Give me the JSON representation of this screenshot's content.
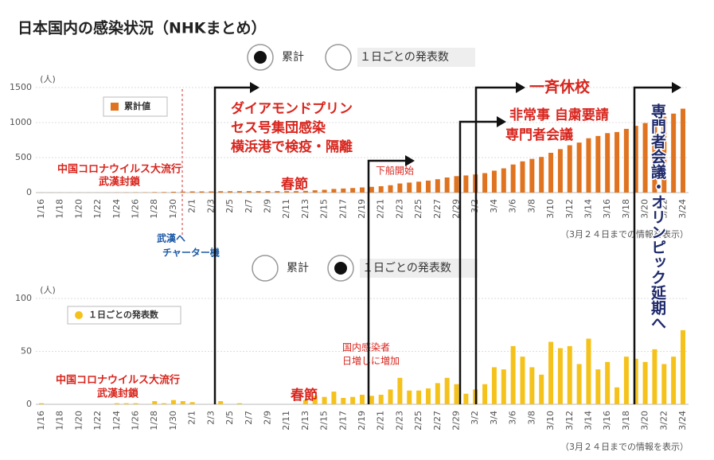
{
  "title": "日本国内の感染状況（NHKまとめ）",
  "overlay_text": "専門者会議・オリンピック延期へ",
  "chart_data": [
    {
      "type": "bar",
      "toggle": {
        "options": [
          "累計",
          "１日ごとの発表数"
        ],
        "selected": 0
      },
      "y_unit": "(人)",
      "categories": [
        "1/16",
        null,
        "1/18",
        null,
        "1/20",
        null,
        "1/22",
        null,
        "1/24",
        null,
        "1/26",
        null,
        "1/28",
        null,
        "1/30",
        null,
        "2/1",
        null,
        "2/3",
        null,
        "2/5",
        null,
        "2/7",
        null,
        "2/9",
        null,
        "2/11",
        null,
        "2/13",
        null,
        "2/15",
        null,
        "2/17",
        null,
        "2/19",
        null,
        "2/21",
        null,
        "2/23",
        null,
        "2/25",
        null,
        "2/27",
        null,
        "2/29",
        null,
        "3/2",
        null,
        "3/4",
        null,
        "3/6",
        null,
        "3/8",
        null,
        "3/10",
        null,
        "3/12",
        null,
        "3/14",
        null,
        "3/16",
        null,
        "3/18",
        null,
        "3/20",
        null,
        "3/22",
        null,
        "3/24"
      ],
      "series": [
        {
          "name": "累計値",
          "color": "#e0731f",
          "values": [
            1,
            1,
            1,
            1,
            1,
            1,
            1,
            1,
            2,
            3,
            4,
            4,
            7,
            8,
            12,
            15,
            17,
            17,
            17,
            20,
            20,
            21,
            21,
            21,
            21,
            21,
            21,
            21,
            25,
            33,
            40,
            52,
            58,
            65,
            74,
            82,
            91,
            105,
            130,
            143,
            156,
            171,
            191,
            216,
            235,
            245,
            259,
            278,
            313,
            346,
            401,
            446,
            481,
            509,
            568,
            621,
            676,
            714,
            776,
            809,
            849,
            865,
            910,
            953,
            993,
            1045,
            1083,
            1128,
            1198
          ]
        }
      ],
      "ylim": [
        0,
        1500
      ],
      "yticks": [
        0,
        500,
        1000,
        1500
      ],
      "grid": true,
      "note": "（3月２４日までの情報を表示）",
      "annotations": [
        "中国コロナウイルス大流行",
        "武漢封鎖",
        "春節",
        "ダイアモンドプリン",
        "セス号集団感染",
        "横浜港で検疫・隔離",
        "下船開始",
        "一斉休校",
        "非常事 自粛要請",
        "専門者会議",
        "武漢へ",
        "チャーター機"
      ]
    },
    {
      "type": "bar",
      "toggle": {
        "options": [
          "累計",
          "１日ごとの発表数"
        ],
        "selected": 1
      },
      "y_unit": "(人)",
      "categories": [
        "1/16",
        null,
        "1/18",
        null,
        "1/20",
        null,
        "1/22",
        null,
        "1/24",
        null,
        "1/26",
        null,
        "1/28",
        null,
        "1/30",
        null,
        "2/1",
        null,
        "2/3",
        null,
        "2/5",
        null,
        "2/7",
        null,
        "2/9",
        null,
        "2/11",
        null,
        "2/13",
        null,
        "2/15",
        null,
        "2/17",
        null,
        "2/19",
        null,
        "2/21",
        null,
        "2/23",
        null,
        "2/25",
        null,
        "2/27",
        null,
        "2/29",
        null,
        "3/2",
        null,
        "3/4",
        null,
        "3/6",
        null,
        "3/8",
        null,
        "3/10",
        null,
        "3/12",
        null,
        "3/14",
        null,
        "3/16",
        null,
        "3/18",
        null,
        "3/20",
        null,
        "3/22",
        null,
        "3/24"
      ],
      "series": [
        {
          "name": "１日ごとの発表数",
          "color": "#f5c21b",
          "values": [
            1,
            0,
            0,
            0,
            0,
            0,
            0,
            0,
            1,
            1,
            1,
            0,
            3,
            1,
            4,
            3,
            2,
            0,
            0,
            3,
            0,
            1,
            0,
            0,
            0,
            0,
            0,
            0,
            4,
            8,
            7,
            12,
            6,
            7,
            9,
            8,
            9,
            14,
            25,
            13,
            13,
            15,
            20,
            25,
            19,
            10,
            14,
            19,
            35,
            33,
            55,
            45,
            35,
            28,
            59,
            53,
            55,
            38,
            62,
            33,
            40,
            16,
            45,
            43,
            40,
            52,
            38,
            45,
            70
          ]
        }
      ],
      "ylim": [
        0,
        100
      ],
      "yticks": [
        0,
        50,
        100
      ],
      "grid": true,
      "note": "（3月２４日までの情報を表示）",
      "annotations": [
        "中国コロナウイルス大流行",
        "武漢封鎖",
        "春節",
        "国内感染者",
        "日増しに増加"
      ]
    }
  ]
}
